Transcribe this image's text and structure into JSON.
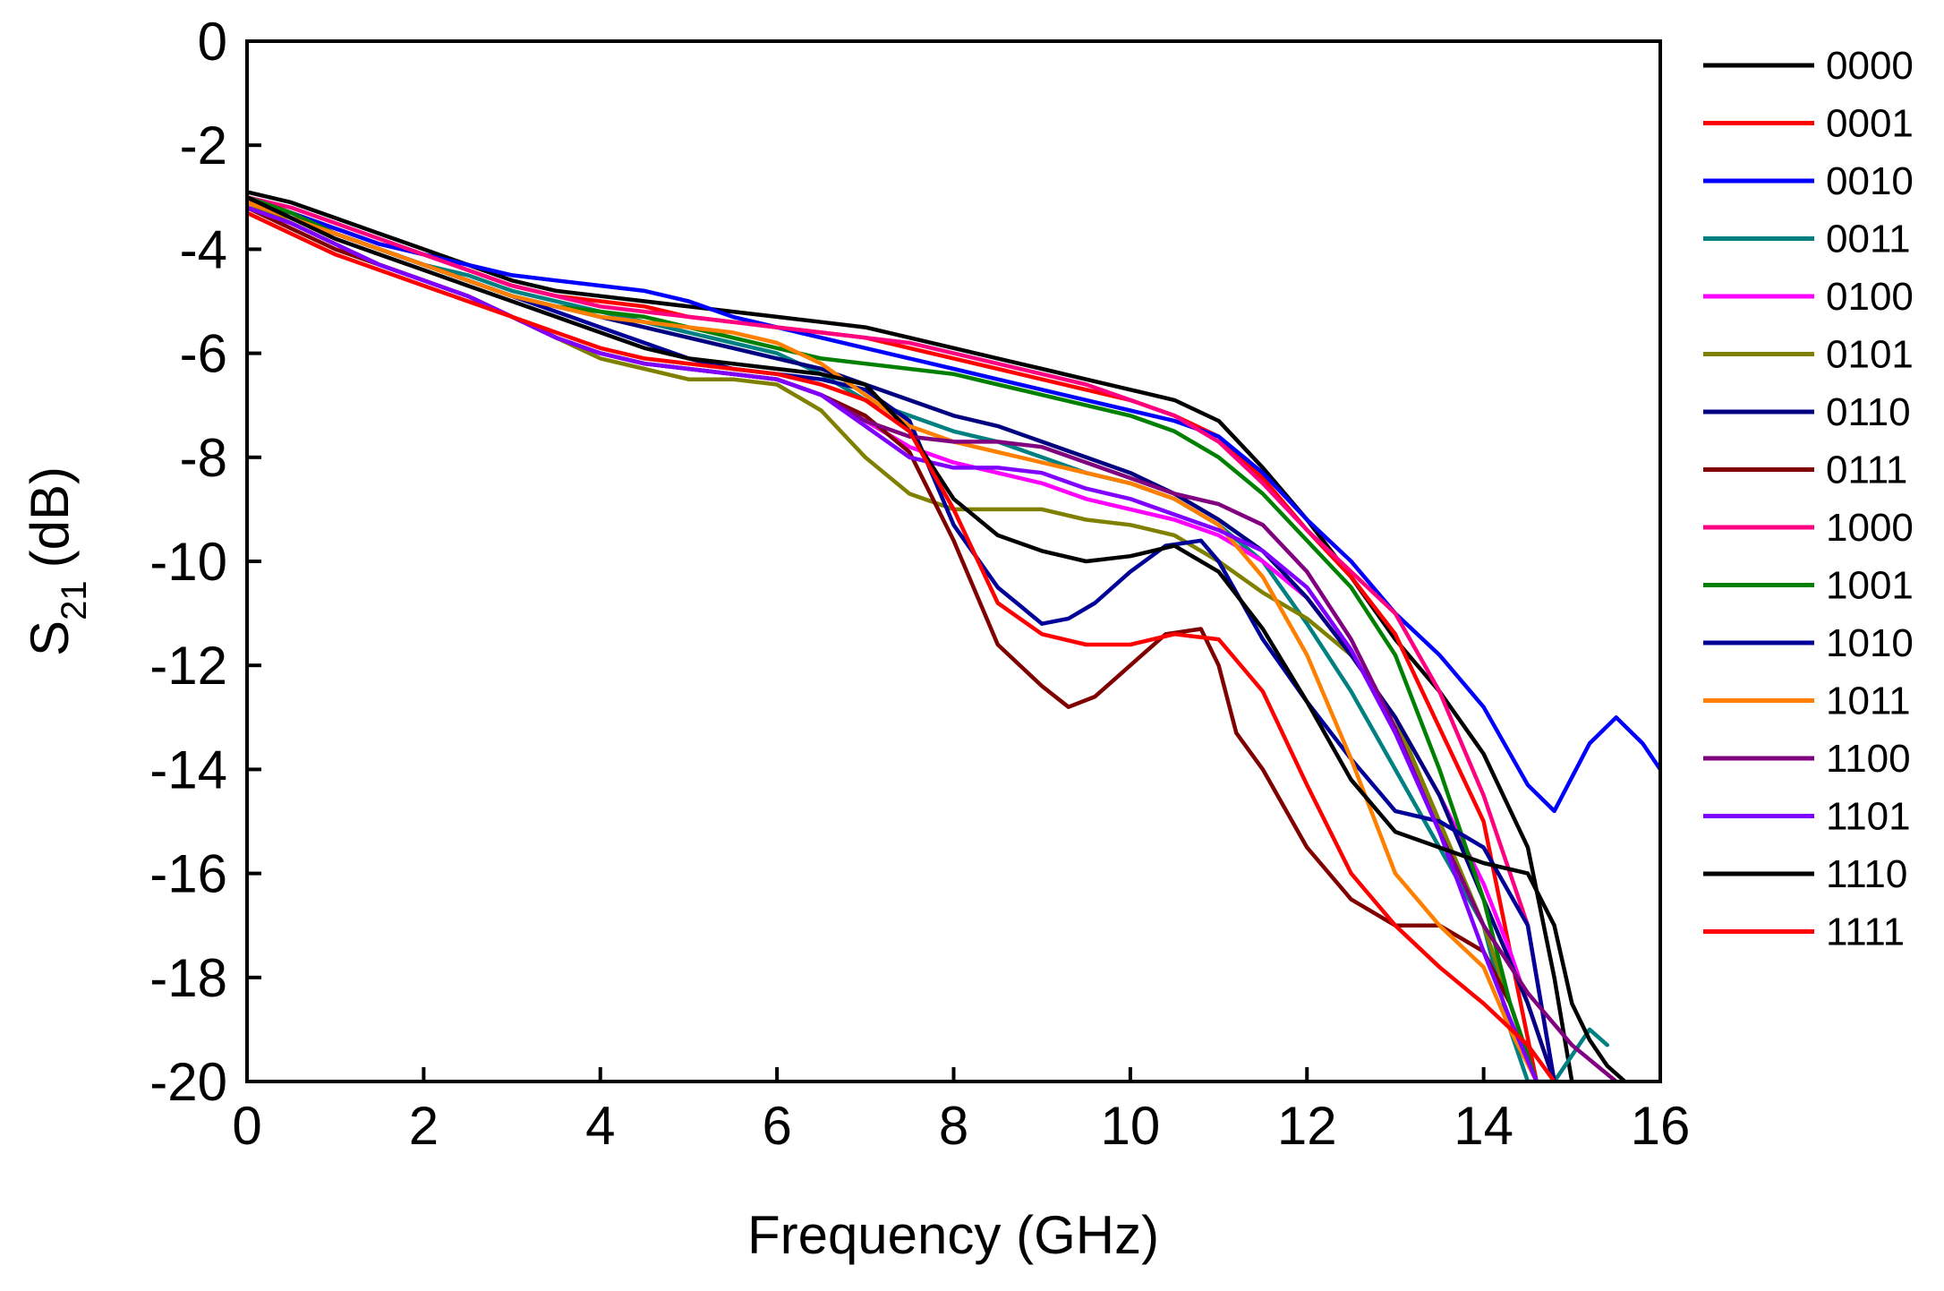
{
  "chart_data": {
    "type": "line",
    "title": "",
    "xlabel": "Frequency (GHz)",
    "ylabel": {
      "main": "S",
      "subscript": "21",
      "unit": "(dB)"
    },
    "xlim": [
      0,
      16
    ],
    "ylim": [
      -20,
      0
    ],
    "xticks": [
      0,
      2,
      4,
      6,
      8,
      10,
      12,
      14,
      16
    ],
    "yticks": [
      0,
      -2,
      -4,
      -6,
      -8,
      -10,
      -12,
      -14,
      -16,
      -18,
      -20
    ],
    "grid": false,
    "legend_position": "right",
    "series": [
      {
        "name": "0000",
        "color": "#000000",
        "x": [
          0,
          0.5,
          1,
          1.5,
          2,
          2.5,
          3,
          3.5,
          4,
          4.5,
          5,
          5.5,
          6,
          6.5,
          7,
          7.5,
          8,
          8.5,
          9,
          9.5,
          10,
          10.5,
          11,
          11.5,
          12,
          12.5,
          13,
          13.5,
          14,
          14.5,
          14.8,
          15.0
        ],
        "y": [
          -2.9,
          -3.1,
          -3.4,
          -3.7,
          -4.0,
          -4.3,
          -4.6,
          -4.8,
          -4.9,
          -5.0,
          -5.1,
          -5.2,
          -5.3,
          -5.4,
          -5.5,
          -5.7,
          -5.9,
          -6.1,
          -6.3,
          -6.5,
          -6.7,
          -6.9,
          -7.3,
          -8.2,
          -9.2,
          -10.3,
          -11.5,
          -12.5,
          -13.7,
          -15.5,
          -18.0,
          -20.0
        ]
      },
      {
        "name": "0001",
        "color": "#ff0000",
        "x": [
          0,
          0.5,
          1,
          1.5,
          2,
          2.5,
          3,
          3.5,
          4,
          4.5,
          5,
          5.5,
          6,
          6.5,
          7,
          7.5,
          8,
          8.5,
          9,
          9.5,
          10,
          10.5,
          11,
          11.5,
          12,
          12.5,
          13,
          13.5,
          14,
          14.3,
          14.6
        ],
        "y": [
          -3.1,
          -3.3,
          -3.6,
          -3.9,
          -4.1,
          -4.4,
          -4.7,
          -4.9,
          -5.0,
          -5.1,
          -5.3,
          -5.4,
          -5.5,
          -5.6,
          -5.7,
          -5.9,
          -6.1,
          -6.3,
          -6.5,
          -6.7,
          -6.9,
          -7.2,
          -7.6,
          -8.4,
          -9.4,
          -10.3,
          -11.4,
          -13.2,
          -15.0,
          -17.5,
          -20.0
        ]
      },
      {
        "name": "0010",
        "color": "#0000ff",
        "x": [
          0,
          0.5,
          1,
          1.5,
          2,
          2.5,
          3,
          3.5,
          4,
          4.5,
          5,
          5.5,
          6,
          6.5,
          7,
          7.5,
          8,
          8.5,
          9,
          9.5,
          10,
          10.5,
          11,
          11.5,
          12,
          12.5,
          13,
          13.5,
          14,
          14.5,
          14.8,
          15.2,
          15.5,
          15.8,
          16
        ],
        "y": [
          -3.0,
          -3.3,
          -3.6,
          -3.9,
          -4.1,
          -4.3,
          -4.5,
          -4.6,
          -4.7,
          -4.8,
          -5.0,
          -5.3,
          -5.5,
          -5.7,
          -5.9,
          -6.1,
          -6.3,
          -6.5,
          -6.7,
          -6.9,
          -7.1,
          -7.3,
          -7.6,
          -8.3,
          -9.2,
          -10.0,
          -11.0,
          -11.8,
          -12.8,
          -14.3,
          -14.8,
          -13.5,
          -13.0,
          -13.5,
          -14.0
        ]
      },
      {
        "name": "0011",
        "color": "#008080",
        "x": [
          0,
          0.5,
          1,
          1.5,
          2,
          2.5,
          3,
          3.5,
          4,
          4.5,
          5,
          5.5,
          6,
          6.5,
          7,
          7.5,
          8,
          8.5,
          9,
          9.5,
          10,
          10.5,
          11,
          11.5,
          12,
          12.5,
          13,
          13.5,
          14,
          14.3,
          14.5,
          14.8,
          15.0,
          15.2,
          15.4
        ],
        "y": [
          -3.1,
          -3.4,
          -3.7,
          -4.0,
          -4.3,
          -4.5,
          -4.8,
          -5.0,
          -5.2,
          -5.4,
          -5.6,
          -5.8,
          -6.0,
          -6.4,
          -6.9,
          -7.2,
          -7.5,
          -7.7,
          -8.0,
          -8.3,
          -8.5,
          -8.8,
          -9.3,
          -10.0,
          -11.2,
          -12.5,
          -14.0,
          -15.5,
          -17.0,
          -19.0,
          -20.0,
          -20.0,
          -19.5,
          -19.0,
          -19.3
        ]
      },
      {
        "name": "0100",
        "color": "#ff00ff",
        "x": [
          0,
          0.5,
          1,
          1.5,
          2,
          2.5,
          3,
          3.5,
          4,
          4.5,
          5,
          5.5,
          6,
          6.5,
          7,
          7.5,
          8,
          8.5,
          9,
          9.5,
          10,
          10.5,
          11,
          11.5,
          12,
          12.5,
          13,
          13.5,
          14,
          14.3,
          14.6,
          14.8
        ],
        "y": [
          -3.2,
          -3.5,
          -3.9,
          -4.3,
          -4.6,
          -4.9,
          -5.3,
          -5.7,
          -6.0,
          -6.2,
          -6.3,
          -6.4,
          -6.5,
          -6.8,
          -7.3,
          -7.8,
          -8.1,
          -8.3,
          -8.5,
          -8.8,
          -9.0,
          -9.2,
          -9.5,
          -10.0,
          -10.7,
          -11.8,
          -13.0,
          -14.5,
          -16.2,
          -17.5,
          -19.0,
          -20.0
        ]
      },
      {
        "name": "0101",
        "color": "#808000",
        "x": [
          0,
          0.5,
          1,
          1.5,
          2,
          2.5,
          3,
          3.5,
          4,
          4.5,
          5,
          5.5,
          6,
          6.5,
          7,
          7.5,
          8,
          8.5,
          9,
          9.5,
          10,
          10.5,
          11,
          11.5,
          12,
          12.5,
          13,
          13.5,
          14,
          14.3,
          14.6
        ],
        "y": [
          -3.1,
          -3.5,
          -3.9,
          -4.3,
          -4.6,
          -4.9,
          -5.3,
          -5.7,
          -6.1,
          -6.3,
          -6.5,
          -6.5,
          -6.6,
          -7.1,
          -8.0,
          -8.7,
          -9.0,
          -9.0,
          -9.0,
          -9.2,
          -9.3,
          -9.5,
          -10.0,
          -10.6,
          -11.1,
          -11.8,
          -13.0,
          -15.0,
          -17.0,
          -18.5,
          -20.0
        ]
      },
      {
        "name": "0110",
        "color": "#000080",
        "x": [
          0,
          0.5,
          1,
          1.5,
          2,
          2.5,
          3,
          3.5,
          4,
          4.5,
          5,
          5.5,
          6,
          6.5,
          7,
          7.5,
          8,
          8.5,
          9,
          9.5,
          10,
          10.5,
          11,
          11.5,
          12,
          12.5,
          13,
          13.5,
          14,
          14.5,
          14.8
        ],
        "y": [
          -3.0,
          -3.4,
          -3.7,
          -4.0,
          -4.3,
          -4.6,
          -4.9,
          -5.1,
          -5.3,
          -5.5,
          -5.7,
          -5.9,
          -6.1,
          -6.3,
          -6.6,
          -6.9,
          -7.2,
          -7.4,
          -7.7,
          -8.0,
          -8.3,
          -8.7,
          -9.2,
          -9.8,
          -10.7,
          -11.8,
          -13.0,
          -14.5,
          -16.5,
          -18.5,
          -20.0
        ]
      },
      {
        "name": "0111",
        "color": "#800000",
        "x": [
          0,
          0.5,
          1,
          1.5,
          2,
          2.5,
          3,
          3.5,
          4,
          4.5,
          5,
          5.5,
          6,
          6.5,
          7,
          7.5,
          8,
          8.5,
          9,
          9.3,
          9.6,
          10,
          10.4,
          10.8,
          11,
          11.2,
          11.5,
          12,
          12.5,
          13,
          13.5,
          14,
          14.3,
          14.6
        ],
        "y": [
          -3.2,
          -3.6,
          -4.0,
          -4.3,
          -4.6,
          -4.9,
          -5.3,
          -5.7,
          -6.0,
          -6.2,
          -6.3,
          -6.4,
          -6.5,
          -6.8,
          -7.2,
          -7.9,
          -9.6,
          -11.6,
          -12.4,
          -12.8,
          -12.6,
          -12.0,
          -11.4,
          -11.3,
          -12.0,
          -13.3,
          -14.0,
          -15.5,
          -16.5,
          -17.0,
          -17.0,
          -17.5,
          -18.5,
          -20.0
        ]
      },
      {
        "name": "1000",
        "color": "#ff0080",
        "x": [
          0,
          0.5,
          1,
          1.5,
          2,
          2.5,
          3,
          3.5,
          4,
          4.5,
          5,
          5.5,
          6,
          6.5,
          7,
          7.5,
          8,
          8.5,
          9,
          9.5,
          10,
          10.5,
          11,
          11.5,
          12,
          12.5,
          13,
          13.5,
          14,
          14.5,
          14.8
        ],
        "y": [
          -3.0,
          -3.2,
          -3.5,
          -3.8,
          -4.1,
          -4.4,
          -4.7,
          -4.9,
          -5.1,
          -5.2,
          -5.3,
          -5.4,
          -5.5,
          -5.6,
          -5.7,
          -5.8,
          -6.0,
          -6.2,
          -6.4,
          -6.6,
          -6.9,
          -7.2,
          -7.7,
          -8.5,
          -9.4,
          -10.2,
          -11.0,
          -12.5,
          -14.5,
          -17.0,
          -20.0
        ]
      },
      {
        "name": "1001",
        "color": "#008000",
        "x": [
          0,
          0.5,
          1,
          1.5,
          2,
          2.5,
          3,
          3.5,
          4,
          4.5,
          5,
          5.5,
          6,
          6.5,
          7,
          7.5,
          8,
          8.5,
          9,
          9.5,
          10,
          10.5,
          11,
          11.5,
          12,
          12.5,
          13,
          13.5,
          14,
          14.3,
          14.6
        ],
        "y": [
          -3.0,
          -3.3,
          -3.7,
          -4.0,
          -4.3,
          -4.6,
          -4.9,
          -5.1,
          -5.2,
          -5.3,
          -5.5,
          -5.7,
          -5.9,
          -6.1,
          -6.2,
          -6.3,
          -6.4,
          -6.6,
          -6.8,
          -7.0,
          -7.2,
          -7.5,
          -8.0,
          -8.7,
          -9.6,
          -10.5,
          -11.8,
          -14.0,
          -16.5,
          -18.5,
          -20.0
        ]
      },
      {
        "name": "1010",
        "color": "#000099",
        "x": [
          0,
          0.5,
          1,
          1.5,
          2,
          2.5,
          3,
          3.5,
          4,
          4.5,
          5,
          5.5,
          6,
          6.5,
          7,
          7.5,
          8,
          8.5,
          9,
          9.3,
          9.6,
          10,
          10.4,
          10.8,
          11,
          11.5,
          12,
          12.5,
          13,
          13.5,
          14,
          14.5,
          14.8
        ],
        "y": [
          -3.0,
          -3.4,
          -3.7,
          -4.0,
          -4.3,
          -4.6,
          -4.9,
          -5.2,
          -5.5,
          -5.8,
          -6.1,
          -6.3,
          -6.4,
          -6.5,
          -6.7,
          -7.3,
          -9.3,
          -10.5,
          -11.2,
          -11.1,
          -10.8,
          -10.2,
          -9.7,
          -9.6,
          -10.0,
          -11.5,
          -12.7,
          -13.8,
          -14.8,
          -15.0,
          -15.5,
          -17.0,
          -20.0
        ]
      },
      {
        "name": "1011",
        "color": "#ff8000",
        "x": [
          0,
          0.5,
          1,
          1.5,
          2,
          2.5,
          3,
          3.5,
          4,
          4.5,
          5,
          5.5,
          6,
          6.5,
          7,
          7.5,
          8,
          8.5,
          9,
          9.5,
          10,
          10.5,
          11,
          11.5,
          12,
          12.5,
          13,
          13.5,
          14,
          14.3,
          14.6
        ],
        "y": [
          -3.1,
          -3.4,
          -3.7,
          -4.0,
          -4.3,
          -4.6,
          -4.9,
          -5.1,
          -5.3,
          -5.4,
          -5.5,
          -5.6,
          -5.8,
          -6.2,
          -6.8,
          -7.4,
          -7.7,
          -7.9,
          -8.1,
          -8.3,
          -8.5,
          -8.8,
          -9.3,
          -10.3,
          -11.8,
          -13.8,
          -16.0,
          -17.0,
          -17.8,
          -19.0,
          -20.0
        ]
      },
      {
        "name": "1100",
        "color": "#800080",
        "x": [
          0,
          0.5,
          1,
          1.5,
          2,
          2.5,
          3,
          3.5,
          4,
          4.5,
          5,
          5.5,
          6,
          6.5,
          7,
          7.5,
          8,
          8.5,
          9,
          9.5,
          10,
          10.5,
          11,
          11.5,
          12,
          12.5,
          13,
          13.5,
          14,
          14.5,
          15.0,
          15.5
        ],
        "y": [
          -3.2,
          -3.5,
          -3.9,
          -4.3,
          -4.6,
          -4.9,
          -5.3,
          -5.7,
          -6.0,
          -6.2,
          -6.3,
          -6.4,
          -6.5,
          -6.8,
          -7.3,
          -7.6,
          -7.7,
          -7.7,
          -7.8,
          -8.1,
          -8.4,
          -8.7,
          -8.9,
          -9.3,
          -10.2,
          -11.5,
          -13.2,
          -15.2,
          -17.0,
          -18.3,
          -19.3,
          -20.0
        ]
      },
      {
        "name": "1101",
        "color": "#8000ff",
        "x": [
          0,
          0.5,
          1,
          1.5,
          2,
          2.5,
          3,
          3.5,
          4,
          4.5,
          5,
          5.5,
          6,
          6.5,
          7,
          7.5,
          8,
          8.5,
          9,
          9.5,
          10,
          10.5,
          11,
          11.5,
          12,
          12.5,
          13,
          13.5,
          14,
          14.3,
          14.6
        ],
        "y": [
          -3.2,
          -3.5,
          -3.9,
          -4.3,
          -4.6,
          -4.9,
          -5.3,
          -5.7,
          -6.0,
          -6.2,
          -6.3,
          -6.4,
          -6.5,
          -6.8,
          -7.4,
          -8.0,
          -8.2,
          -8.2,
          -8.3,
          -8.6,
          -8.8,
          -9.1,
          -9.4,
          -9.8,
          -10.5,
          -11.7,
          -13.3,
          -15.2,
          -17.5,
          -18.8,
          -20.0
        ]
      },
      {
        "name": "1110",
        "color": "#000000",
        "x": [
          0,
          0.5,
          1,
          1.5,
          2,
          2.5,
          3,
          3.5,
          4,
          4.5,
          5,
          5.5,
          6,
          6.5,
          7,
          7.5,
          8,
          8.5,
          9,
          9.5,
          10,
          10.5,
          11,
          11.5,
          12,
          12.5,
          13,
          13.5,
          14,
          14.5,
          14.8,
          15.0,
          15.2,
          15.4,
          15.6
        ],
        "y": [
          -3.0,
          -3.4,
          -3.8,
          -4.1,
          -4.4,
          -4.7,
          -5.0,
          -5.3,
          -5.6,
          -5.9,
          -6.1,
          -6.2,
          -6.3,
          -6.4,
          -6.6,
          -7.5,
          -8.8,
          -9.5,
          -9.8,
          -10.0,
          -9.9,
          -9.7,
          -10.2,
          -11.3,
          -12.7,
          -14.2,
          -15.2,
          -15.5,
          -15.8,
          -16.0,
          -17.0,
          -18.5,
          -19.2,
          -19.7,
          -20.0
        ]
      },
      {
        "name": "1111",
        "color": "#ff0000",
        "x": [
          0,
          0.5,
          1,
          1.5,
          2,
          2.5,
          3,
          3.5,
          4,
          4.5,
          5,
          5.5,
          6,
          6.5,
          7,
          7.5,
          8,
          8.5,
          9,
          9.5,
          10,
          10.5,
          11,
          11.5,
          12,
          12.5,
          13,
          13.5,
          14,
          14.5,
          14.8
        ],
        "y": [
          -3.3,
          -3.7,
          -4.1,
          -4.4,
          -4.7,
          -5.0,
          -5.3,
          -5.6,
          -5.9,
          -6.1,
          -6.2,
          -6.3,
          -6.4,
          -6.6,
          -6.9,
          -7.5,
          -9.0,
          -10.8,
          -11.4,
          -11.6,
          -11.6,
          -11.4,
          -11.5,
          -12.5,
          -14.3,
          -16.0,
          -17.0,
          -17.8,
          -18.5,
          -19.3,
          -20.0
        ]
      }
    ]
  }
}
